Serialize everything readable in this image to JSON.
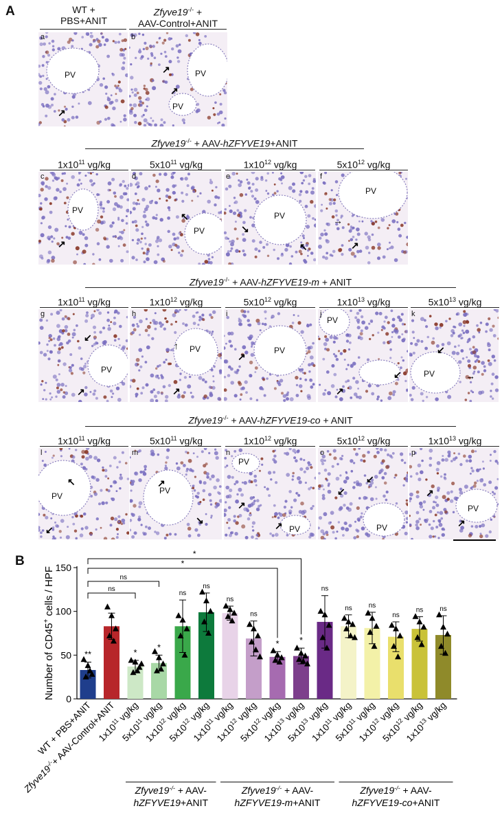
{
  "panel_A_letter": "A",
  "panel_B_letter": "B",
  "row1": {
    "headers": [
      {
        "line1": "WT +",
        "line2": "PBS+ANIT"
      },
      {
        "line1_italic": "Zfyve19",
        "line1_sup": "-/-",
        "line1_rest": " +",
        "line2": "AAV-Control+ANIT"
      }
    ],
    "tiles": [
      {
        "label": "a",
        "pv": [
          "PV"
        ]
      },
      {
        "label": "b",
        "pv": [
          "PV",
          "PV"
        ]
      }
    ]
  },
  "row2": {
    "group": {
      "gene_italic": "Zfyve19",
      "sup": "-/-",
      "mid": " + AAV-",
      "vector_italic": "hZFYVE19",
      "tail": "+ANIT"
    },
    "doses": [
      "1x10|11| vg/kg",
      "5x10|11| vg/kg",
      "1x10|12| vg/kg",
      "5x10|12| vg/kg"
    ],
    "tiles": [
      {
        "label": "c",
        "pv": [
          "PV"
        ]
      },
      {
        "label": "d",
        "pv": [
          "PV"
        ]
      },
      {
        "label": "e",
        "pv": [
          "PV"
        ]
      },
      {
        "label": "f",
        "pv": [
          "PV"
        ]
      }
    ]
  },
  "row3": {
    "group": {
      "gene_italic": "Zfyve19",
      "sup": "-/-",
      "mid": " + AAV-",
      "vector_italic": "hZFYVE19-m",
      "tail": " + ANIT"
    },
    "doses": [
      "1x10|11| vg/kg",
      "1x10|12| vg/kg",
      "5x10|12| vg/kg",
      "1x10|13| vg/kg",
      "5x10|13| vg/kg"
    ],
    "tiles": [
      {
        "label": "g",
        "pv": [
          "PV"
        ]
      },
      {
        "label": "h",
        "pv": [
          "PV"
        ]
      },
      {
        "label": "i",
        "pv": [
          "PV"
        ]
      },
      {
        "label": "j",
        "pv": [
          "PV"
        ]
      },
      {
        "label": "k",
        "pv": [
          "PV"
        ]
      }
    ]
  },
  "row4": {
    "group": {
      "gene_italic": "Zfyve19",
      "sup": "-/-",
      "mid": " + AAV-",
      "vector_italic": "hZFYVE19-co",
      "tail": " + ANIT"
    },
    "doses": [
      "1x10|11| vg/kg",
      "5x10|11| vg/kg",
      "1x10|12| vg/kg",
      "5x10|12| vg/kg",
      "1x10|13| vg/kg"
    ],
    "tiles": [
      {
        "label": "l",
        "pv": [
          "PV"
        ]
      },
      {
        "label": "m",
        "pv": [
          "PV"
        ]
      },
      {
        "label": "n",
        "pv": [
          "PV",
          "PV"
        ]
      },
      {
        "label": "o",
        "pv": [
          "PV"
        ]
      },
      {
        "label": "p",
        "pv": [
          "PV"
        ]
      }
    ]
  },
  "colors": {
    "tissue_bg": "#f4eef5",
    "nucleus": "#7a6fc0",
    "stain": "#8a3a2a"
  },
  "chart_data": {
    "type": "bar",
    "ylabel_pre": "Number of CD45",
    "ylabel_sup": "+",
    "ylabel_post": " cells / HPF",
    "ylim": [
      0,
      150
    ],
    "yticks": [
      0,
      50,
      100,
      150
    ],
    "categories": [
      "WT + PBS+ANIT",
      "Zfyve19-/- + AAV-Control+ANIT",
      "1x10^11 vg/kg",
      "5x10^11 vg/kg",
      "1x10^12 vg/kg",
      "5x10^12 vg/kg",
      "1x10^11 vg/kg",
      "1x10^12 vg/kg",
      "5x10^12 vg/kg",
      "1x10^13 vg/kg",
      "5x10^13 vg/kg",
      "1x10^11 vg/kg",
      "5x10^11 vg/kg",
      "1x10^12 vg/kg",
      "5x10^12 vg/kg",
      "1x10^13 vg/kg"
    ],
    "values": [
      33,
      83,
      37,
      41,
      83,
      99,
      98,
      69,
      48,
      49,
      88,
      83,
      81,
      71,
      80,
      73
    ],
    "errors": [
      9,
      15,
      7,
      9,
      30,
      22,
      8,
      20,
      6,
      9,
      30,
      13,
      18,
      17,
      14,
      22
    ],
    "points": [
      [
        45,
        38,
        28,
        25,
        32
      ],
      [
        105,
        95,
        80,
        72,
        66
      ],
      [
        44,
        42,
        36,
        30,
        32,
        40
      ],
      [
        54,
        47,
        40,
        32,
        34
      ],
      [
        95,
        90,
        80,
        72,
        50
      ],
      [
        122,
        112,
        100,
        88,
        75
      ],
      [
        106,
        102,
        98,
        94,
        89
      ],
      [
        85,
        80,
        72,
        65,
        56,
        48
      ],
      [
        55,
        50,
        47,
        44,
        42
      ],
      [
        58,
        52,
        49,
        45,
        43,
        40
      ],
      [
        100,
        96,
        84,
        70,
        58
      ],
      [
        92,
        88,
        85,
        80,
        72,
        70
      ],
      [
        98,
        92,
        83,
        76,
        60
      ],
      [
        84,
        80,
        72,
        60,
        48
      ],
      [
        94,
        88,
        82,
        70,
        62
      ],
      [
        96,
        82,
        74,
        60,
        52
      ]
    ],
    "significance": [
      "**",
      "",
      "*",
      "*",
      "ns",
      "ns",
      "ns",
      "ns",
      "*",
      "*",
      "ns",
      "ns",
      "ns",
      "ns",
      "ns",
      "ns"
    ],
    "bar_colors": [
      "#1f3e8c",
      "#b7262a",
      "#cde8c6",
      "#a8d8a6",
      "#3aa84a",
      "#0d7a3c",
      "#e8d3e8",
      "#c49ec9",
      "#a66bb0",
      "#7d3f8c",
      "#6a2a86",
      "#f4f3c8",
      "#f3f1a8",
      "#e9df6c",
      "#c9c238",
      "#8f8a2a"
    ],
    "brackets": [
      {
        "from": 0,
        "to": 2,
        "label": "ns"
      },
      {
        "from": 0,
        "to": 3,
        "label": "ns"
      },
      {
        "from": 0,
        "to": 8,
        "label": "*"
      },
      {
        "from": 0,
        "to": 9,
        "label": "*"
      }
    ],
    "groups": [
      {
        "from": 2,
        "to": 5,
        "gene": "Zfyve19",
        "sup": "-/-",
        "mid": " + AAV-",
        "vector": "hZFYVE19",
        "tail": "+ANIT"
      },
      {
        "from": 6,
        "to": 10,
        "gene": "Zfyve19",
        "sup": "-/-",
        "mid": " + AAV-",
        "vector": "hZFYVE19-m",
        "tail": "+ANIT"
      },
      {
        "from": 11,
        "to": 15,
        "gene": "Zfyve19",
        "sup": "-/-",
        "mid": " + AAV-",
        "vector": "hZFYVE19-co",
        "tail": "+ANIT"
      }
    ]
  }
}
